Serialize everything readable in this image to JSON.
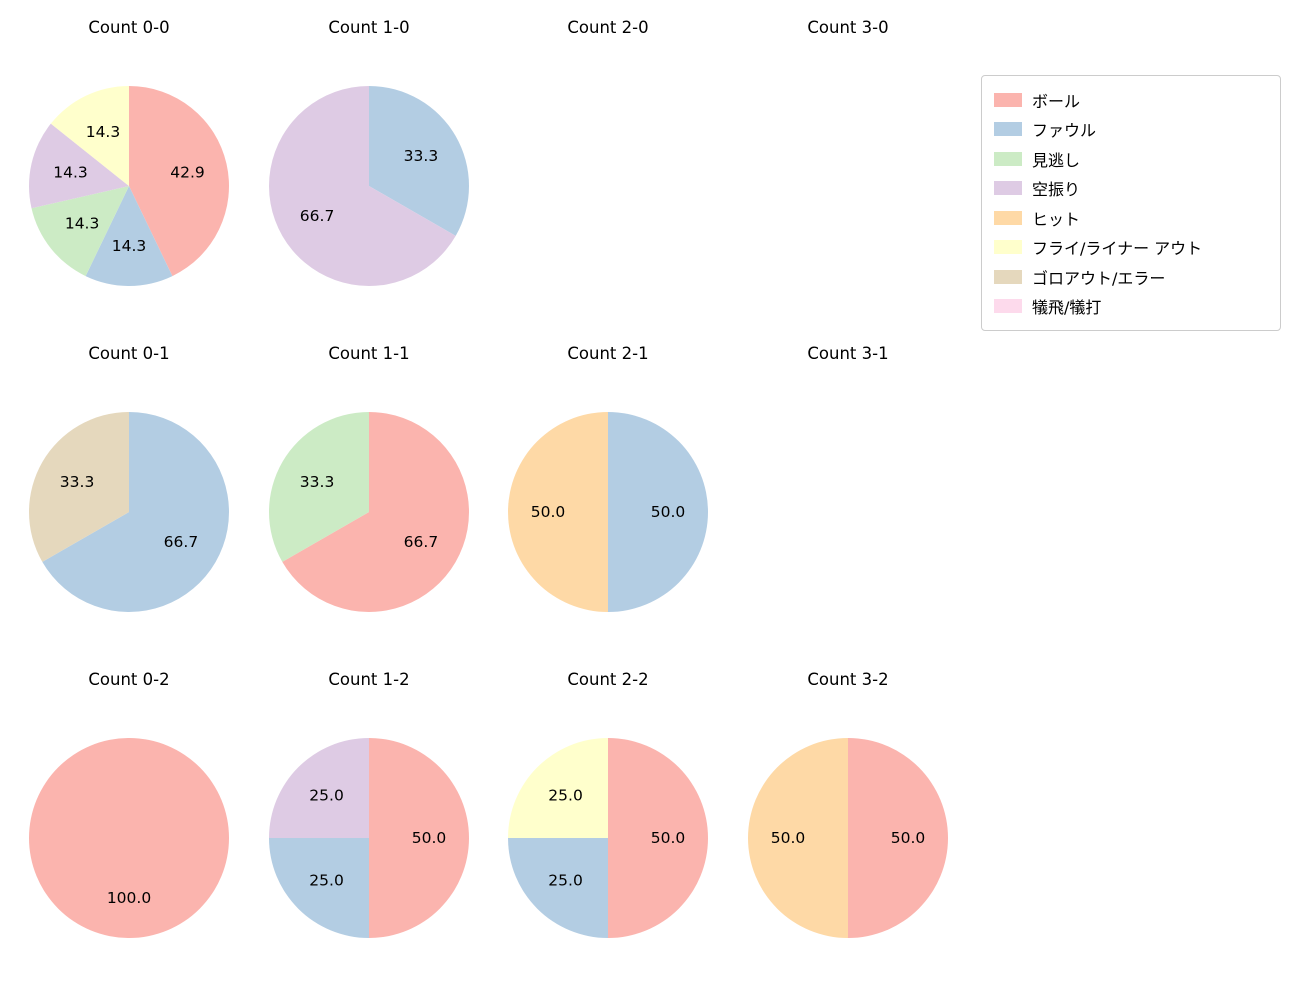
{
  "page": {
    "background": "#ffffff"
  },
  "legend": {
    "items": [
      {
        "label": "ボール",
        "color": "#fbb4ae"
      },
      {
        "label": "ファウル",
        "color": "#b3cde3"
      },
      {
        "label": "見逃し",
        "color": "#ccebc5"
      },
      {
        "label": "空振り",
        "color": "#decbe4"
      },
      {
        "label": "ヒット",
        "color": "#fed9a6"
      },
      {
        "label": "フライ/ライナー アウト",
        "color": "#ffffcc"
      },
      {
        "label": "ゴロアウト/エラー",
        "color": "#e5d8bd"
      },
      {
        "label": "犠飛/犠打",
        "color": "#fddaec"
      }
    ]
  },
  "chart_data": [
    {
      "type": "pie",
      "title": "Count 0-0",
      "start_angle_deg": 90,
      "direction": "clockwise",
      "slices": [
        {
          "label": "ボール",
          "value": 42.9
        },
        {
          "label": "ファウル",
          "value": 14.3
        },
        {
          "label": "見逃し",
          "value": 14.3
        },
        {
          "label": "空振り",
          "value": 14.3
        },
        {
          "label": "フライ/ライナー アウト",
          "value": 14.3
        }
      ]
    },
    {
      "type": "pie",
      "title": "Count 1-0",
      "start_angle_deg": 90,
      "direction": "clockwise",
      "slices": [
        {
          "label": "ファウル",
          "value": 33.3
        },
        {
          "label": "空振り",
          "value": 66.7
        }
      ]
    },
    {
      "type": "pie",
      "title": "Count 2-0",
      "start_angle_deg": 90,
      "direction": "clockwise",
      "slices": []
    },
    {
      "type": "pie",
      "title": "Count 3-0",
      "start_angle_deg": 90,
      "direction": "clockwise",
      "slices": []
    },
    {
      "type": "pie",
      "title": "Count 0-1",
      "start_angle_deg": 90,
      "direction": "clockwise",
      "slices": [
        {
          "label": "ファウル",
          "value": 66.7
        },
        {
          "label": "ゴロアウト/エラー",
          "value": 33.3
        }
      ]
    },
    {
      "type": "pie",
      "title": "Count 1-1",
      "start_angle_deg": 90,
      "direction": "clockwise",
      "slices": [
        {
          "label": "ボール",
          "value": 66.7
        },
        {
          "label": "見逃し",
          "value": 33.3
        }
      ]
    },
    {
      "type": "pie",
      "title": "Count 2-1",
      "start_angle_deg": 90,
      "direction": "clockwise",
      "slices": [
        {
          "label": "ファウル",
          "value": 50.0
        },
        {
          "label": "ヒット",
          "value": 50.0
        }
      ]
    },
    {
      "type": "pie",
      "title": "Count 3-1",
      "start_angle_deg": 90,
      "direction": "clockwise",
      "slices": []
    },
    {
      "type": "pie",
      "title": "Count 0-2",
      "start_angle_deg": 90,
      "direction": "clockwise",
      "slices": [
        {
          "label": "ボール",
          "value": 100.0
        }
      ]
    },
    {
      "type": "pie",
      "title": "Count 1-2",
      "start_angle_deg": 90,
      "direction": "clockwise",
      "slices": [
        {
          "label": "ボール",
          "value": 50.0
        },
        {
          "label": "ファウル",
          "value": 25.0
        },
        {
          "label": "空振り",
          "value": 25.0
        }
      ]
    },
    {
      "type": "pie",
      "title": "Count 2-2",
      "start_angle_deg": 90,
      "direction": "clockwise",
      "slices": [
        {
          "label": "ボール",
          "value": 50.0
        },
        {
          "label": "ファウル",
          "value": 25.0
        },
        {
          "label": "フライ/ライナー アウト",
          "value": 25.0
        }
      ]
    },
    {
      "type": "pie",
      "title": "Count 3-2",
      "start_angle_deg": 90,
      "direction": "clockwise",
      "slices": [
        {
          "label": "ボール",
          "value": 50.0
        },
        {
          "label": "ヒット",
          "value": 50.0
        }
      ]
    }
  ]
}
